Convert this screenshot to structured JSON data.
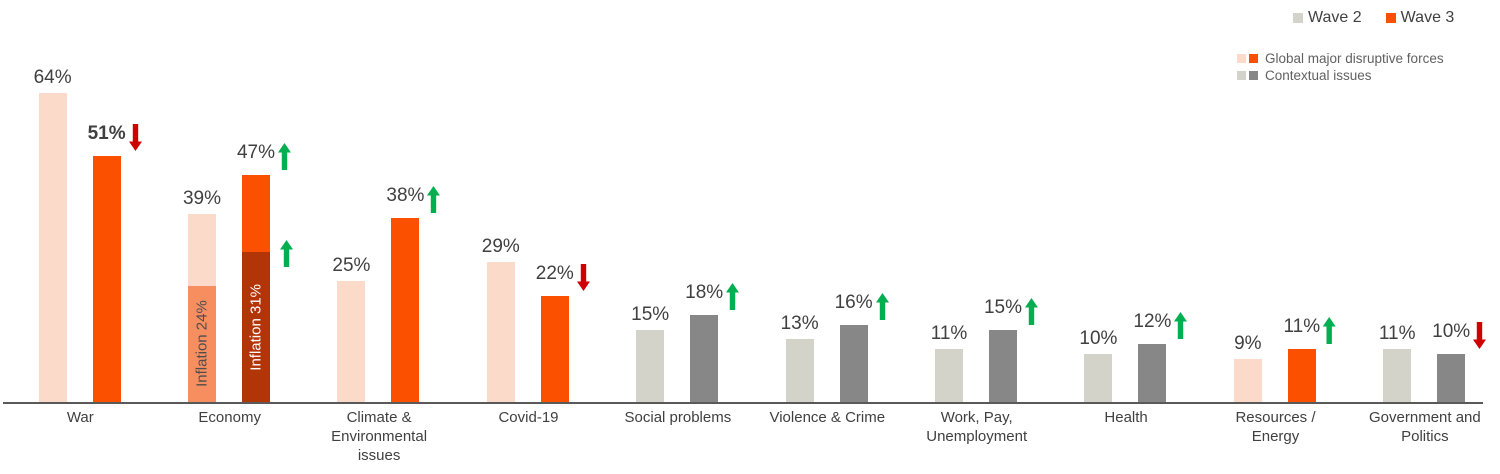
{
  "legend": {
    "series": [
      {
        "label": "Wave 2",
        "color": "#D4D3CA"
      },
      {
        "label": "Wave 3",
        "color": "#FB5000"
      }
    ],
    "groups": [
      {
        "label": "Global major disruptive forces",
        "colors": [
          "#FCDACA",
          "#FB5000"
        ]
      },
      {
        "label": "Contextual issues",
        "colors": [
          "#D4D3CA",
          "#878787"
        ]
      }
    ]
  },
  "colors": {
    "palettes": {
      "disruptive": {
        "wave2": "#FCDACA",
        "wave3": "#FB5000",
        "wave2_sub": "#F78E60",
        "wave3_sub": "#B23508",
        "wave2_sub_text": "#4D4D4D",
        "wave3_sub_text": "#FFFFFF"
      },
      "contextual": {
        "wave2": "#D4D3CA",
        "wave3": "#878787"
      }
    },
    "arrow_up": "#00B050",
    "arrow_down": "#CE0000",
    "axis_line": "#595959",
    "value_text": "#404040",
    "category_text": "#404040",
    "legend_text": "#404040",
    "sub_legend_text": "#616161"
  },
  "chart_data": {
    "type": "bar",
    "title": "",
    "unit": "%",
    "series_names": [
      "Wave 2",
      "Wave 3"
    ],
    "ylim": [
      0,
      70
    ],
    "grid": false,
    "legend_position": "top-right",
    "categories": [
      {
        "label": "War",
        "palette": "disruptive",
        "wave2": {
          "value": 64,
          "label": "64%"
        },
        "wave3": {
          "value": 51,
          "label": "51%",
          "bold": true,
          "arrow": "down"
        }
      },
      {
        "label": "Economy",
        "palette": "disruptive",
        "wave2": {
          "value": 39,
          "label": "39%",
          "sub": {
            "value": 24,
            "label": "Inflation 24%"
          }
        },
        "wave3": {
          "value": 47,
          "label": "47%",
          "arrow": "up",
          "sub": {
            "value": 31,
            "label": "Inflation 31%"
          }
        },
        "side_arrow": "up"
      },
      {
        "label": "Climate &\nEnvironmental\nissues",
        "palette": "disruptive",
        "wave2": {
          "value": 25,
          "label": "25%"
        },
        "wave3": {
          "value": 38,
          "label": "38%",
          "arrow": "up"
        }
      },
      {
        "label": "Covid-19",
        "palette": "disruptive",
        "wave2": {
          "value": 29,
          "label": "29%"
        },
        "wave3": {
          "value": 22,
          "label": "22%",
          "arrow": "down"
        }
      },
      {
        "label": "Social problems",
        "palette": "contextual",
        "wave2": {
          "value": 15,
          "label": "15%"
        },
        "wave3": {
          "value": 18,
          "label": "18%",
          "arrow": "up"
        }
      },
      {
        "label": "Violence & Crime",
        "palette": "contextual",
        "wave2": {
          "value": 13,
          "label": "13%"
        },
        "wave3": {
          "value": 16,
          "label": "16%",
          "arrow": "up"
        }
      },
      {
        "label": "Work, Pay,\nUnemployment",
        "palette": "contextual",
        "wave2": {
          "value": 11,
          "label": "11%"
        },
        "wave3": {
          "value": 15,
          "label": "15%",
          "arrow": "up"
        }
      },
      {
        "label": "Health",
        "palette": "contextual",
        "wave2": {
          "value": 10,
          "label": "10%"
        },
        "wave3": {
          "value": 12,
          "label": "12%",
          "arrow": "up"
        }
      },
      {
        "label": "Resources /\nEnergy",
        "palette": "disruptive",
        "wave2": {
          "value": 9,
          "label": "9%"
        },
        "wave3": {
          "value": 11,
          "label": "11%",
          "arrow": "up"
        }
      },
      {
        "label": "Government and\nPolitics",
        "palette": "contextual",
        "wave2": {
          "value": 11,
          "label": "11%"
        },
        "wave3": {
          "value": 10,
          "label": "10%",
          "arrow": "down"
        }
      }
    ]
  }
}
